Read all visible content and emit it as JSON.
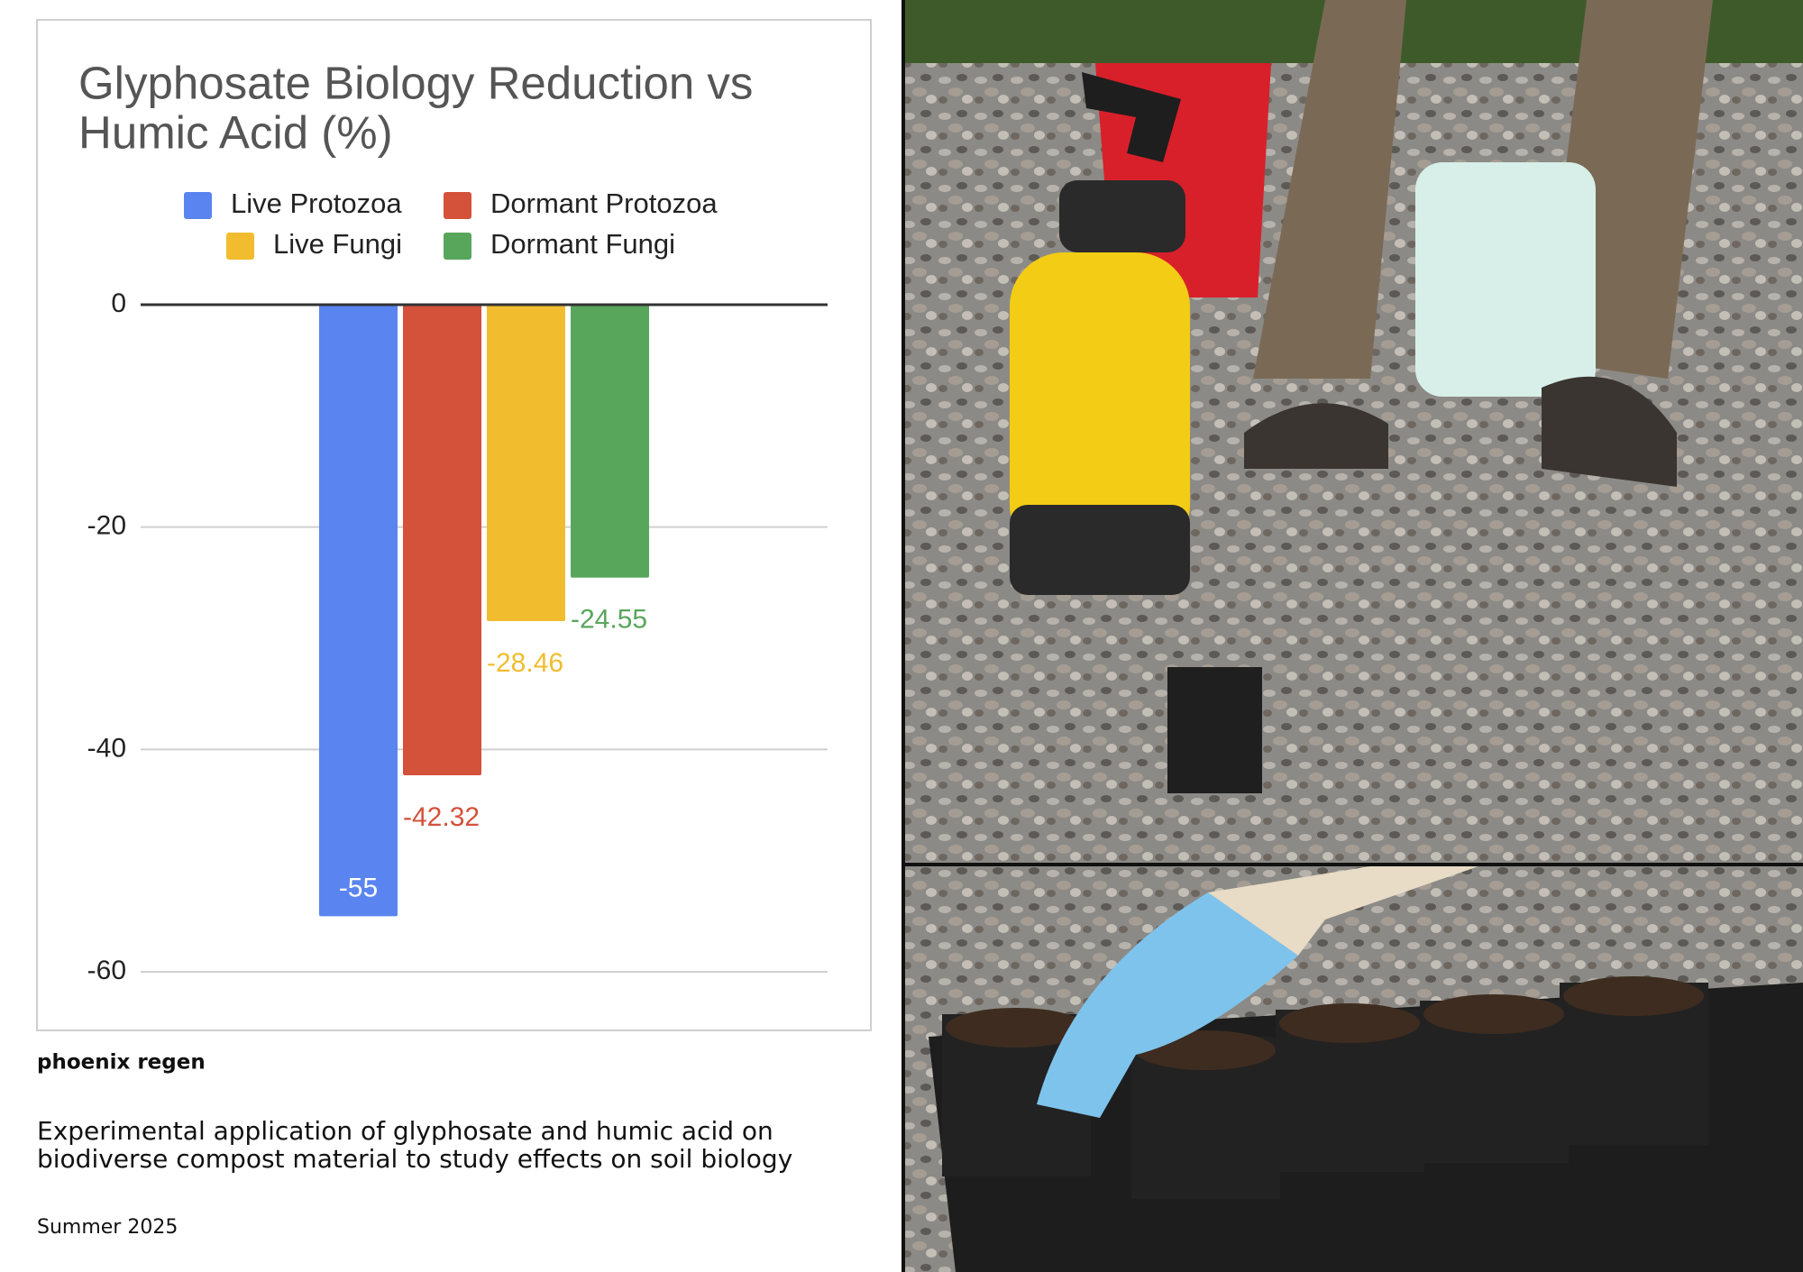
{
  "chart_data": {
    "type": "bar",
    "title": [
      "Glyphosate Biology Reduction vs",
      "Humic Acid (%)"
    ],
    "categories": [
      null
    ],
    "series": [
      {
        "name": "Live Protozoa",
        "color": "#5a84ef",
        "values": [
          -55
        ]
      },
      {
        "name": "Dormant Protozoa",
        "color": "#d4513a",
        "values": [
          -42.32
        ]
      },
      {
        "name": "Live Fungi",
        "color": "#f1bd2f",
        "values": [
          -28.46
        ]
      },
      {
        "name": "Dormant Fungi",
        "color": "#58a65b",
        "values": [
          -24.55
        ]
      }
    ],
    "ylim": [
      -60,
      0
    ],
    "yticks": [
      0,
      -20,
      -40,
      -60
    ],
    "grid": true,
    "legend": "top"
  },
  "brand": "phoenix regen",
  "description": [
    "Experimental application of glyphosate and humic acid on",
    "biodiverse compost material to study effects on soil biology"
  ],
  "date": "Summer 2025"
}
